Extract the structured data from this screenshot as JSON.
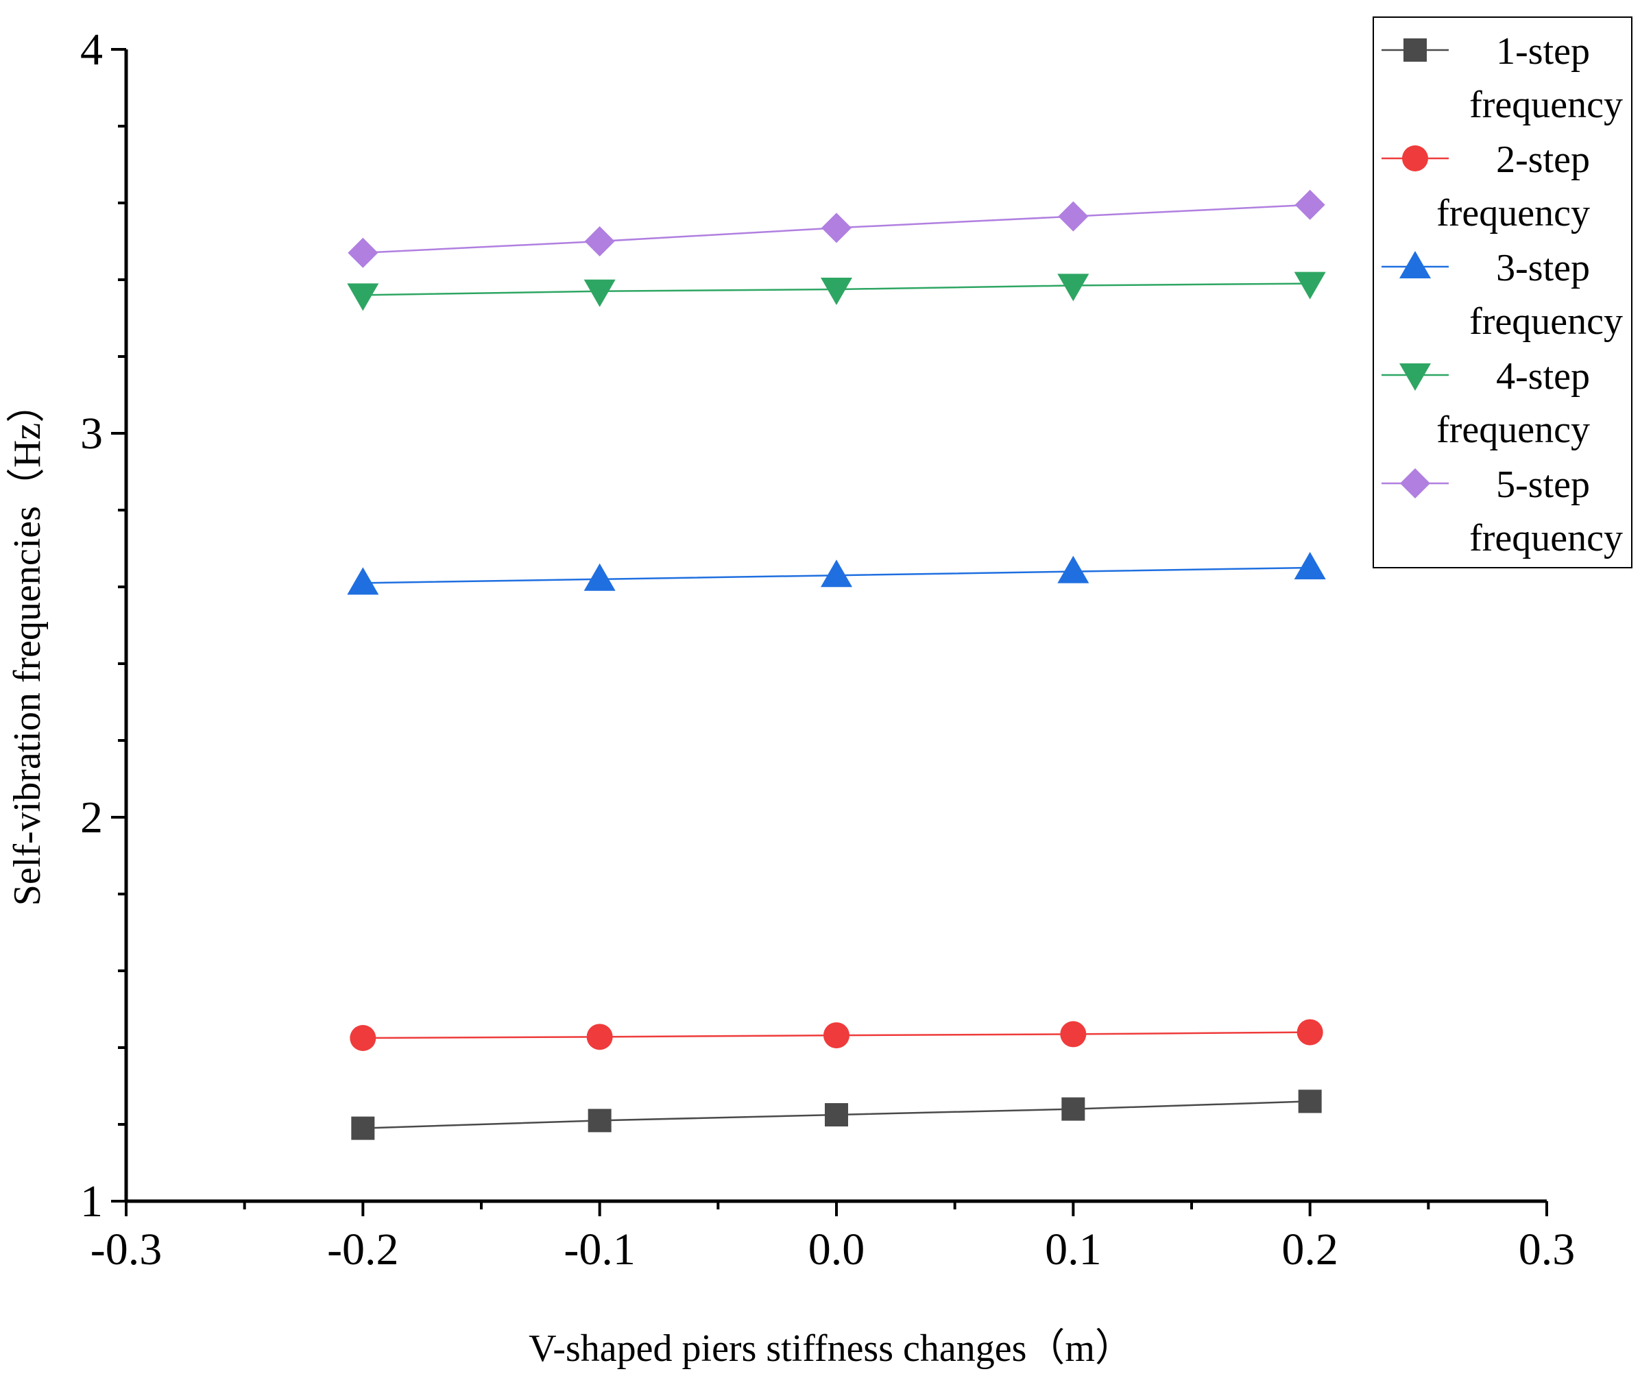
{
  "chart_data": {
    "type": "line",
    "title": "",
    "xlabel": "V-shaped piers stiffness changes（m）",
    "ylabel": "Self-vibration frequencies（Hz）",
    "xlim": [
      -0.3,
      0.3
    ],
    "ylim": [
      1,
      4
    ],
    "x_ticks": [
      -0.3,
      -0.2,
      -0.1,
      0.0,
      0.1,
      0.2,
      0.3
    ],
    "x_tick_labels": [
      "-0.3",
      "-0.2",
      "-0.1",
      "0.0",
      "0.1",
      "0.2",
      "0.3"
    ],
    "y_ticks": [
      1,
      2,
      3,
      4
    ],
    "y_tick_labels": [
      "1",
      "2",
      "3",
      "4"
    ],
    "y_minor_step": 0.2,
    "grid": false,
    "legend_position": "top-right",
    "x": [
      -0.2,
      -0.1,
      0.0,
      0.1,
      0.2
    ],
    "series": [
      {
        "name": "1-step frequency",
        "marker": "square",
        "color": "#4a4a4a",
        "values": [
          1.19,
          1.21,
          1.225,
          1.24,
          1.26
        ]
      },
      {
        "name": "2-step frequency",
        "marker": "circle",
        "color": "#ef3b3b",
        "values": [
          1.425,
          1.428,
          1.432,
          1.435,
          1.44
        ]
      },
      {
        "name": "3-step frequency",
        "marker": "triangle-up",
        "color": "#1f6fe0",
        "values": [
          2.61,
          2.62,
          2.63,
          2.64,
          2.65
        ]
      },
      {
        "name": "4-step frequency",
        "marker": "triangle-down",
        "color": "#2ea663",
        "values": [
          3.36,
          3.37,
          3.375,
          3.385,
          3.39
        ]
      },
      {
        "name": "5-step frequency",
        "marker": "diamond",
        "color": "#b07fe0",
        "values": [
          3.47,
          3.5,
          3.535,
          3.565,
          3.595
        ]
      }
    ]
  }
}
